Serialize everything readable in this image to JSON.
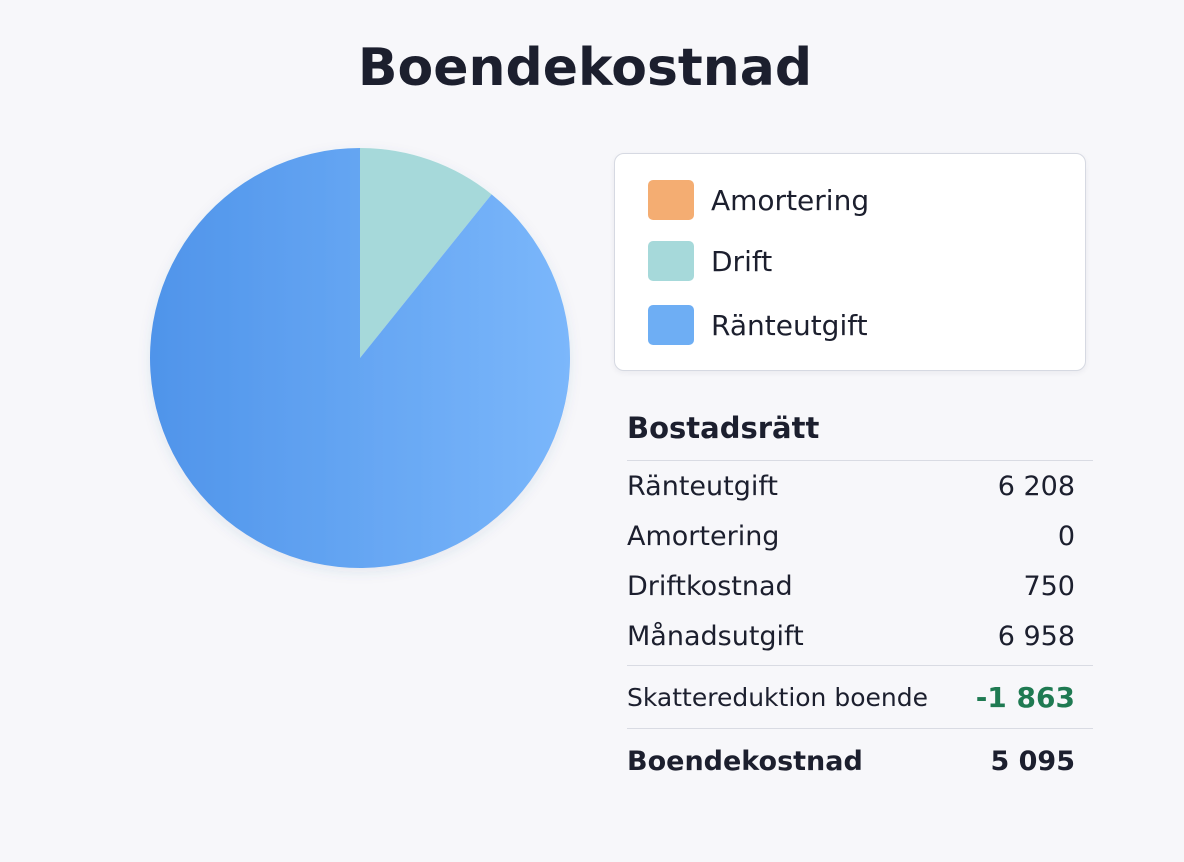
{
  "title": "Boendekostnad",
  "chart_data": {
    "type": "pie",
    "slices": [
      {
        "label": "Amortering",
        "value": 0,
        "color": "#f4ad72"
      },
      {
        "label": "Drift",
        "value": 750,
        "color": "#a6d9da"
      },
      {
        "label": "Ränteutgift",
        "value": 6208,
        "color": "#6eaef4"
      }
    ],
    "legend": [
      "Amortering",
      "Drift",
      "Ränteutgift"
    ],
    "legend_position": "right"
  },
  "colors": {
    "amortering": "#f4ad72",
    "drift": "#a6d9da",
    "ranteutgift": "#6eaef4",
    "negative": "#1f7a52"
  },
  "summary": {
    "heading": "Bostadsrätt",
    "rows": [
      {
        "label": "Ränteutgift",
        "value": "6 208"
      },
      {
        "label": "Amortering",
        "value": "0"
      },
      {
        "label": "Driftkostnad",
        "value": "750"
      },
      {
        "label": "Månadsutgift",
        "value": "6 958"
      }
    ],
    "tax": {
      "label": "Skattereduktion boende",
      "value": "-1 863"
    },
    "total": {
      "label": "Boendekostnad",
      "value": "5 095"
    }
  }
}
